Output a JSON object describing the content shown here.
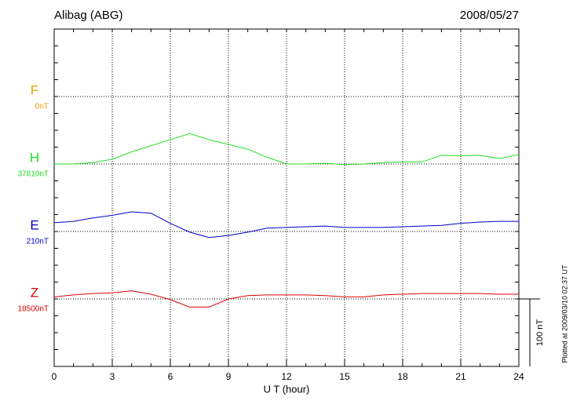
{
  "chart_data": {
    "type": "line",
    "title": "Alibag (ABG)",
    "date": "2008/05/27",
    "x_label": "U T (hour)",
    "xlim": [
      0,
      24
    ],
    "xticks": [
      0,
      3,
      6,
      9,
      12,
      15,
      18,
      21,
      24
    ],
    "x": [
      0,
      1,
      2,
      3,
      4,
      5,
      6,
      7,
      8,
      9,
      10,
      11,
      12,
      13,
      14,
      15,
      16,
      17,
      18,
      19,
      20,
      21,
      22,
      23,
      24
    ],
    "scale_bar": {
      "value": 100,
      "label": "100 nT"
    },
    "footer": "Plotted at 2009/03/10 02:37 UT",
    "grid": true,
    "series": [
      {
        "name": "F",
        "baseline_label": "0nT",
        "color": "#f0a000",
        "values": [
          null,
          null,
          null,
          null,
          null,
          null,
          null,
          null,
          null,
          null,
          null,
          null,
          null,
          null,
          null,
          null,
          null,
          null,
          null,
          null,
          null,
          null,
          null,
          null,
          null
        ]
      },
      {
        "name": "H",
        "baseline_label": "37810nT",
        "color": "#22dd22",
        "values": [
          0,
          0,
          2,
          7,
          18,
          27,
          36,
          45,
          36,
          29,
          22,
          10,
          0,
          0,
          1,
          -1,
          0,
          2,
          3,
          3,
          13,
          12,
          13,
          8,
          14
        ]
      },
      {
        "name": "E",
        "baseline_label": "210nT",
        "color": "#0000cc",
        "values": [
          13,
          15,
          20,
          24,
          29,
          27,
          12,
          -1,
          -9,
          -6,
          -1,
          5,
          6,
          7,
          8,
          6,
          6,
          6,
          7,
          8,
          9,
          12,
          14,
          15,
          15
        ]
      },
      {
        "name": "Z",
        "baseline_label": "18500nT",
        "color": "#dd0000",
        "values": [
          3,
          6,
          8,
          9,
          12,
          7,
          -1,
          -12,
          -12,
          0,
          5,
          6,
          6,
          6,
          5,
          3,
          3,
          6,
          7,
          8,
          8,
          8,
          8,
          7,
          7
        ]
      }
    ]
  }
}
